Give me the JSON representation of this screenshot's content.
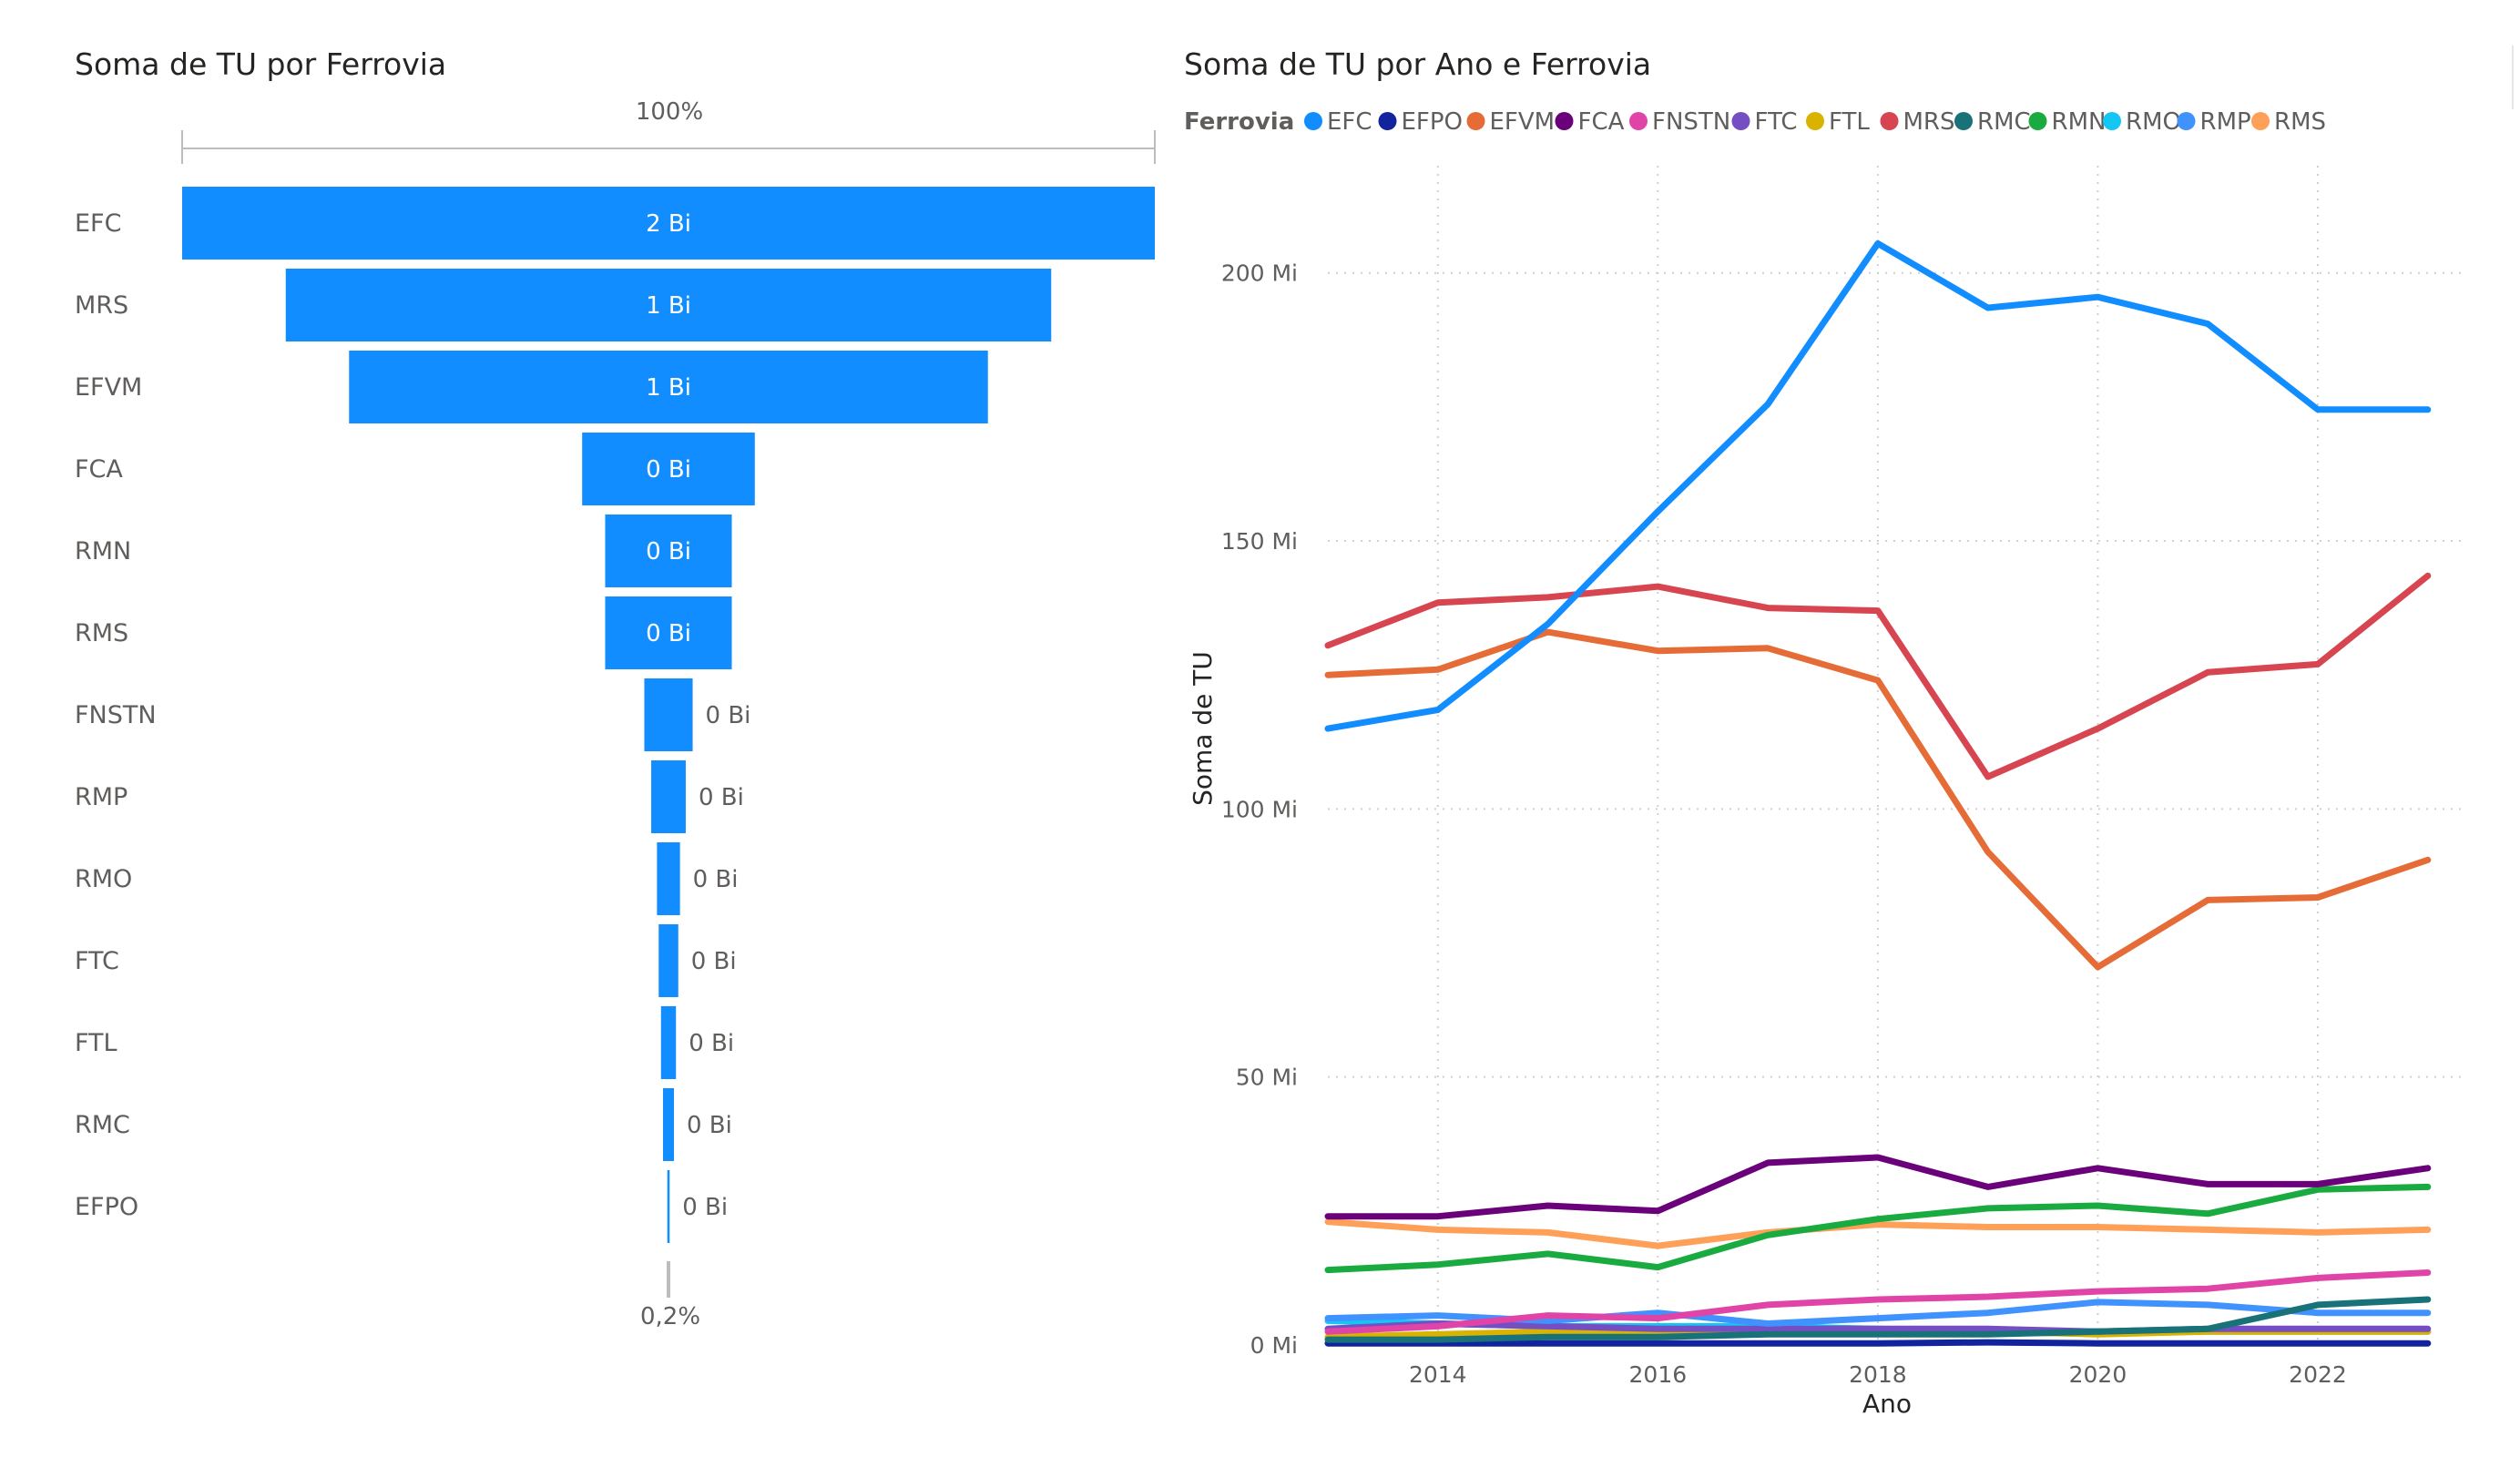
{
  "funnel": {
    "title": "Soma de TU por Ferrovia",
    "top_percent": "100%",
    "bottom_percent": "0,2%",
    "bar_color": "#118DFF",
    "chart_data": {
      "type": "funnel",
      "title": "Soma de TU por Ferrovia",
      "categories": [
        "EFC",
        "MRS",
        "EFVM",
        "FCA",
        "RMN",
        "RMS",
        "FNSTN",
        "RMP",
        "RMO",
        "FTC",
        "FTL",
        "RMC",
        "EFPO"
      ],
      "values": [
        1.69,
        1.33,
        1.11,
        0.3,
        0.22,
        0.22,
        0.084,
        0.06,
        0.04,
        0.034,
        0.026,
        0.019,
        0.004
      ],
      "value_unit": "Bi",
      "data_labels": [
        "2 Bi",
        "1 Bi",
        "1 Bi",
        "0 Bi",
        "0 Bi",
        "0 Bi",
        "0 Bi",
        "0 Bi",
        "0 Bi",
        "0 Bi",
        "0 Bi",
        "0 Bi",
        "0 Bi"
      ]
    }
  },
  "line": {
    "title": "Soma de TU por Ano e Ferrovia",
    "legend_title": "Ferrovia",
    "chart_data": {
      "type": "line",
      "title": "Soma de TU por Ano e Ferrovia",
      "xlabel": "Ano",
      "ylabel": "Soma de TU",
      "x": [
        2013,
        2014,
        2015,
        2016,
        2017,
        2018,
        2019,
        2020,
        2021,
        2022,
        2023
      ],
      "x_ticks": [
        2014,
        2016,
        2018,
        2020,
        2022
      ],
      "y_ticks": [
        0,
        50,
        100,
        150,
        200
      ],
      "y_tick_labels": [
        "0 Mi",
        "50 Mi",
        "100 Mi",
        "150 Mi",
        "200 Mi"
      ],
      "ylim": [
        0,
        220
      ],
      "xlim": [
        2013,
        2023.3
      ],
      "series": [
        {
          "name": "EFC",
          "color": "#118DFF",
          "values": [
            115,
            118.5,
            134.5,
            155.5,
            175.5,
            205.5,
            193.5,
            195.5,
            190.5,
            174.5,
            174.5
          ]
        },
        {
          "name": "EFPO",
          "color": "#12239E",
          "values": [
            0.3,
            0.3,
            0.3,
            0.3,
            0.3,
            0.3,
            0.5,
            0.3,
            0.3,
            0.3,
            0.3
          ]
        },
        {
          "name": "EFVM",
          "color": "#E66C37",
          "values": [
            125,
            126,
            133,
            129.5,
            130,
            124,
            92,
            70.5,
            83,
            83.5,
            90.5
          ]
        },
        {
          "name": "FCA",
          "color": "#6B007B",
          "values": [
            24,
            24,
            26,
            25,
            34,
            35,
            29.5,
            33,
            30,
            30,
            33
          ]
        },
        {
          "name": "FNSTN",
          "color": "#E044A7",
          "values": [
            2.5,
            3.5,
            5.5,
            5,
            7.5,
            8.5,
            9,
            10,
            10.5,
            12.5,
            13.5
          ]
        },
        {
          "name": "FTC",
          "color": "#744EC2",
          "values": [
            3,
            4,
            3.5,
            3,
            3,
            3,
            3,
            2.5,
            3,
            3,
            3
          ]
        },
        {
          "name": "FTL",
          "color": "#D9B300",
          "values": [
            1.5,
            2,
            2.5,
            2.5,
            2.5,
            2.5,
            2.5,
            2,
            2.5,
            2.5,
            2.5
          ]
        },
        {
          "name": "MRS",
          "color": "#D64550",
          "values": [
            130.5,
            138.5,
            139.5,
            141.5,
            137.5,
            137,
            106,
            115,
            125.5,
            127,
            143.5
          ]
        },
        {
          "name": "RMC",
          "color": "#197278",
          "values": [
            1,
            1,
            1.5,
            1.5,
            2,
            2,
            2,
            2.5,
            3,
            7.5,
            8.5
          ]
        },
        {
          "name": "RMN",
          "color": "#1AAB40",
          "values": [
            14,
            15,
            17,
            14.5,
            20.5,
            23.5,
            25.5,
            26,
            24.5,
            29,
            29.5
          ]
        },
        {
          "name": "RMO",
          "color": "#15C6F4",
          "values": [
            4.5,
            4,
            3.5,
            3.5,
            3.5,
            3,
            2.5,
            2.5,
            2.5,
            2.5,
            2.5
          ]
        },
        {
          "name": "RMP",
          "color": "#4092FF",
          "values": [
            5,
            5.5,
            4.5,
            6,
            4,
            5,
            6,
            8,
            7.5,
            6,
            6
          ]
        },
        {
          "name": "RMS",
          "color": "#FFA058",
          "values": [
            23,
            21.5,
            21,
            18.5,
            21,
            22.5,
            22,
            22,
            21.5,
            21,
            21.5
          ]
        }
      ]
    }
  }
}
